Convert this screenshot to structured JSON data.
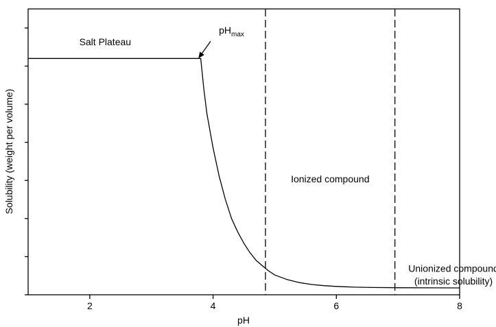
{
  "chart_data": {
    "type": "line",
    "title": "",
    "xlabel": "pH",
    "ylabel": "Solubility (weight per volume)",
    "xlim": [
      1,
      8
    ],
    "ylim": [
      0,
      7.5
    ],
    "xticks": [
      2,
      4,
      6,
      8
    ],
    "xtick_labels": [
      "2",
      "4",
      "6",
      "8"
    ],
    "yticks": [
      0,
      1,
      2,
      3,
      4,
      5,
      6,
      7
    ],
    "ytick_labels": [],
    "grid": false,
    "series": [
      {
        "color": "#000000",
        "points": [
          [
            1.0,
            6.2
          ],
          [
            3.8,
            6.2
          ],
          [
            3.85,
            5.4
          ],
          [
            3.9,
            4.75
          ],
          [
            4.0,
            3.85
          ],
          [
            4.1,
            3.1
          ],
          [
            4.2,
            2.5
          ],
          [
            4.3,
            2.0
          ],
          [
            4.4,
            1.65
          ],
          [
            4.5,
            1.35
          ],
          [
            4.6,
            1.1
          ],
          [
            4.7,
            0.9
          ],
          [
            4.8,
            0.76
          ],
          [
            4.9,
            0.63
          ],
          [
            5.0,
            0.52
          ],
          [
            5.2,
            0.4
          ],
          [
            5.4,
            0.32
          ],
          [
            5.6,
            0.27
          ],
          [
            5.8,
            0.24
          ],
          [
            6.0,
            0.22
          ],
          [
            6.3,
            0.2
          ],
          [
            6.6,
            0.19
          ],
          [
            7.0,
            0.185
          ],
          [
            8.0,
            0.18
          ]
        ]
      }
    ],
    "vlines": [
      {
        "x": 4.85,
        "style": "dashed",
        "color": "#000000"
      },
      {
        "x": 6.95,
        "style": "dashed",
        "color": "#000000"
      }
    ],
    "annotations": [
      {
        "text": "Salt Plateau",
        "x": 2.25,
        "y": 6.55
      },
      {
        "text": "Ionized compound",
        "x": 5.9,
        "y": 2.95
      },
      {
        "text": "Unionized compound",
        "x": 7.9,
        "y": 0.6
      },
      {
        "text": "(intrinsic solubility)",
        "x": 7.9,
        "y": 0.27
      }
    ],
    "pointer_annotation": {
      "text_main": "pH",
      "text_sub": "max",
      "text_x": 4.3,
      "text_y": 6.85,
      "arrow_from": [
        3.96,
        6.65
      ],
      "arrow_to": [
        3.77,
        6.22
      ]
    }
  }
}
